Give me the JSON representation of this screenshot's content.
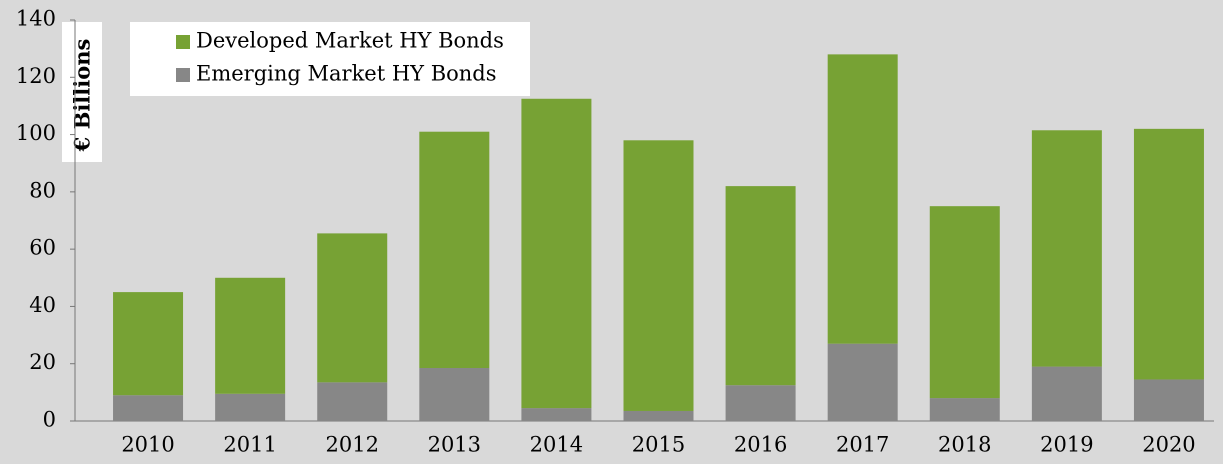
{
  "chart_data": {
    "type": "stacked-bar",
    "y_label": "€ Billions",
    "categories": [
      "2010",
      "2011",
      "2012",
      "2013",
      "2014",
      "2015",
      "2016",
      "2017",
      "2018",
      "2019",
      "2020"
    ],
    "series": [
      {
        "name": "Emerging Market HY Bonds",
        "color": "#878787",
        "values": [
          9,
          9.5,
          13.5,
          18.5,
          4.5,
          3.5,
          12.5,
          27,
          8,
          19,
          14.5
        ]
      },
      {
        "name": "Developed Market HY Bonds",
        "color": "#77a234",
        "values": [
          36,
          40.5,
          52,
          82.5,
          108,
          94.5,
          69.5,
          101,
          67,
          82.5,
          87.5
        ]
      }
    ],
    "ylim": [
      0,
      140
    ],
    "yticks": [
      0,
      20,
      40,
      60,
      80,
      100,
      120,
      140
    ],
    "grid": false
  }
}
